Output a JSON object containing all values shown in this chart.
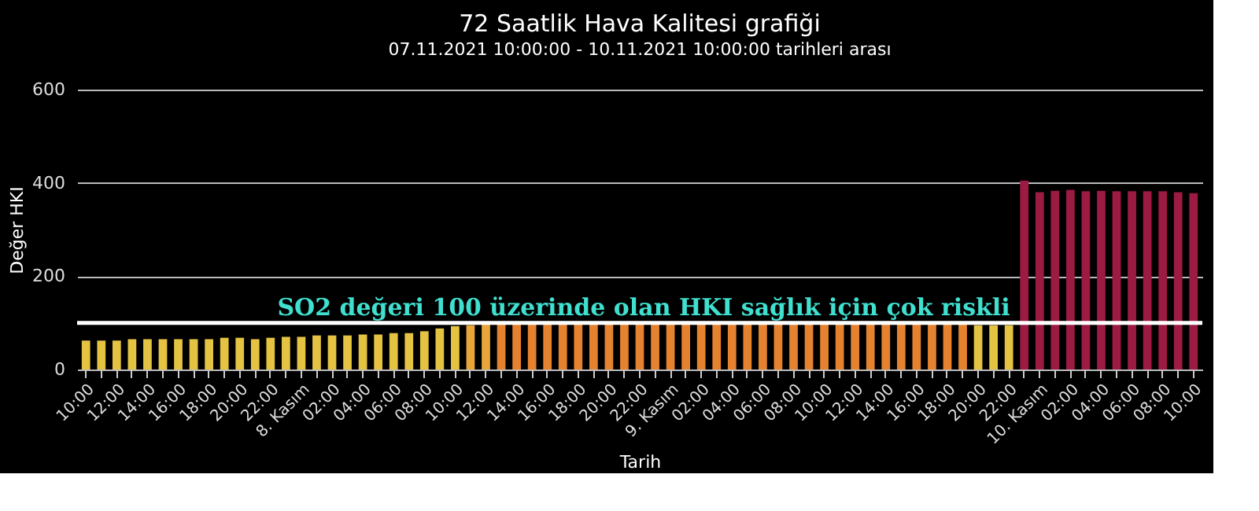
{
  "chart_data": {
    "type": "bar",
    "title": "72 Saatlik Hava Kalitesi grafiği",
    "subtitle": "07.11.2021 10:00:00 - 10.11.2021 10:00:00 tarihleri arası",
    "xlabel": "Tarih",
    "ylabel": "Değer HKI",
    "categories": [
      "10:00",
      null,
      "12:00",
      null,
      "14:00",
      null,
      "16:00",
      null,
      "18:00",
      null,
      "20:00",
      null,
      "22:00",
      null,
      "8. Kasım",
      null,
      "02:00",
      null,
      "04:00",
      null,
      "06:00",
      null,
      "08:00",
      null,
      "10:00",
      null,
      "12:00",
      null,
      "14:00",
      null,
      "16:00",
      null,
      "18:00",
      null,
      "20:00",
      null,
      "22:00",
      null,
      "9. Kasım",
      null,
      "02:00",
      null,
      "04:00",
      null,
      "06:00",
      null,
      "08:00",
      null,
      "10:00",
      null,
      "12:00",
      null,
      "14:00",
      null,
      "16:00",
      null,
      "18:00",
      null,
      "20:00",
      null,
      "22:00",
      null,
      "10. Kasım",
      null,
      "02:00",
      null,
      "04:00",
      null,
      "06:00",
      null,
      "08:00",
      null,
      "10:00"
    ],
    "values": [
      62,
      62,
      62,
      65,
      65,
      65,
      65,
      65,
      65,
      68,
      68,
      65,
      68,
      70,
      70,
      73,
      73,
      73,
      75,
      75,
      78,
      78,
      82,
      88,
      93,
      95,
      97,
      98,
      100,
      100,
      100,
      100,
      100,
      100,
      100,
      100,
      102,
      102,
      102,
      102,
      102,
      102,
      102,
      102,
      102,
      100,
      100,
      100,
      100,
      100,
      100,
      100,
      100,
      100,
      100,
      100,
      98,
      98,
      95,
      95,
      95,
      405,
      380,
      383,
      385,
      382,
      383,
      382,
      382,
      382,
      382,
      380,
      378
    ],
    "colors": [
      "#e5c342",
      "#e5c342",
      "#e5c342",
      "#e5c342",
      "#e5c342",
      "#e5c342",
      "#e5c342",
      "#e5c342",
      "#e5c342",
      "#e5c342",
      "#e5c342",
      "#e5c342",
      "#e5c342",
      "#e5c342",
      "#e5c342",
      "#e5c342",
      "#e5c342",
      "#e5c342",
      "#e5c342",
      "#e5c342",
      "#e5c342",
      "#e5c342",
      "#e5c342",
      "#e5c342",
      "#e5c342",
      "#e8a53a",
      "#e8a53a",
      "#e5822f",
      "#e5822f",
      "#e5822f",
      "#e5822f",
      "#e5822f",
      "#e5822f",
      "#e5822f",
      "#e5822f",
      "#e5822f",
      "#e5822f",
      "#e5822f",
      "#e5822f",
      "#e5822f",
      "#e5822f",
      "#e5822f",
      "#e5822f",
      "#e5822f",
      "#e5822f",
      "#e5822f",
      "#e5822f",
      "#e5822f",
      "#e5822f",
      "#e5822f",
      "#e5822f",
      "#e5822f",
      "#e5822f",
      "#e5822f",
      "#e5822f",
      "#e5822f",
      "#e5822f",
      "#e5822f",
      "#e5c342",
      "#e5c342",
      "#e5c342",
      "#9b1b42",
      "#9b1b42",
      "#9b1b42",
      "#9b1b42",
      "#9b1b42",
      "#9b1b42",
      "#9b1b42",
      "#9b1b42",
      "#9b1b42",
      "#9b1b42",
      "#9b1b42",
      "#9b1b42"
    ],
    "ylim": [
      0,
      600
    ],
    "yticks": [
      0,
      200,
      400,
      600
    ],
    "grid": "y",
    "ref_lines": [
      {
        "axis": "y",
        "value": 100,
        "label": "SO2 değeri 100 üzerinde olan HKI sağlık için çok riskli",
        "color": "#ffffff"
      }
    ]
  }
}
